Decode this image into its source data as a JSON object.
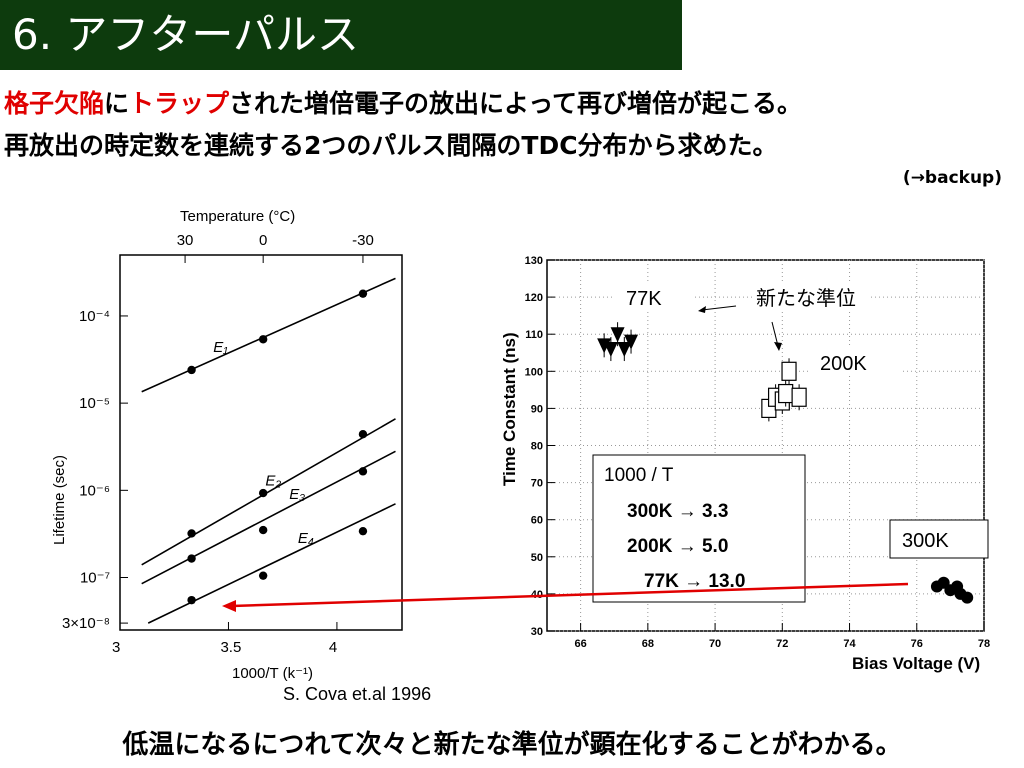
{
  "title": "6. アフターパルス",
  "intro": {
    "seg1_red": "格子欠陥",
    "seg2": "に",
    "seg3_red": "トラップ",
    "seg4": "された増倍電子の放出によって再び増倍が起こる。",
    "line2": "再放出の時定数を連続する2つのパルス間隔のTDC分布から求めた。",
    "backup": "(→backup)"
  },
  "citation": "S. Cova et.al 1996",
  "conclusion": "低温になるにつれて次々と新たな準位が顕在化することがわかる。",
  "colors": {
    "title_bg": "#0d3b0d",
    "accent_red": "#e00000"
  },
  "chart_data": [
    {
      "type": "line",
      "xlabel": "1000/T (k⁻¹)",
      "ylabel": "Lifetime (sec)",
      "top_xlabel": "Temperature (°C)",
      "x_range": [
        3.0,
        4.3
      ],
      "y_range": [
        2.5e-08,
        0.0005
      ],
      "y_scale": "log",
      "x_ticks": [
        3,
        3.5,
        4
      ],
      "x_tick_labels": [
        "3",
        "3.5",
        "4"
      ],
      "y_ticks": [
        0.0001,
        1e-05,
        1e-06,
        1e-07,
        3e-08
      ],
      "y_tick_labels": [
        "10⁻⁴",
        "10⁻⁵",
        "10⁻⁶",
        "10⁻⁷",
        "3×10⁻⁸"
      ],
      "top_ticks": [
        30,
        0,
        -30
      ],
      "top_tick_labels": [
        "30",
        "0",
        "-30"
      ],
      "series": [
        {
          "name": "E₁",
          "x": [
            3.33,
            3.66,
            4.12
          ],
          "y": [
            2.4e-05,
            5.4e-05,
            0.00018
          ],
          "fit": [
            [
              3.1,
              1.35e-05
            ],
            [
              4.27,
              0.00027
            ]
          ]
        },
        {
          "name": "E₂",
          "x": [
            3.33,
            3.66,
            4.12
          ],
          "y": [
            3.2e-07,
            9.3e-07,
            4.4e-06
          ],
          "fit": [
            [
              3.1,
              1.4e-07
            ],
            [
              4.27,
              6.6e-06
            ]
          ]
        },
        {
          "name": "E₃",
          "x": [
            3.33,
            3.66,
            4.12
          ],
          "y": [
            1.65e-07,
            3.5e-07,
            1.65e-06
          ],
          "fit": [
            [
              3.1,
              8.5e-08
            ],
            [
              4.27,
              2.8e-06
            ]
          ]
        },
        {
          "name": "E₄",
          "x": [
            3.33,
            3.66,
            4.12
          ],
          "y": [
            5.5e-08,
            1.05e-07,
            3.4e-07
          ],
          "fit": [
            [
              3.13,
              3e-08
            ],
            [
              4.27,
              7e-07
            ]
          ]
        }
      ]
    },
    {
      "type": "scatter",
      "xlabel": "Bias Voltage (V)",
      "ylabel": "Time Constant (ns)",
      "xlim": [
        65,
        78
      ],
      "ylim": [
        30,
        130
      ],
      "x_ticks": [
        66,
        68,
        70,
        72,
        74,
        76,
        78
      ],
      "y_ticks": [
        30,
        40,
        50,
        60,
        70,
        80,
        90,
        100,
        110,
        120,
        130
      ],
      "grid": true,
      "series": [
        {
          "name": "77K",
          "x": [
            66.7,
            66.9,
            67.1,
            67.3,
            67.5
          ],
          "y": [
            107,
            106,
            110,
            106,
            108
          ]
        },
        {
          "name": "200K",
          "x": [
            71.6,
            71.8,
            72.0,
            72.1,
            72.2,
            72.5
          ],
          "y": [
            90,
            93,
            92,
            94,
            100,
            93
          ]
        },
        {
          "name": "300K",
          "x": [
            76.6,
            76.8,
            77.0,
            77.2,
            77.3,
            77.5
          ],
          "y": [
            42,
            43,
            41,
            42,
            40,
            39
          ]
        }
      ],
      "annotations": {
        "label_77k": "77K",
        "new_level": "新たな準位",
        "label_200k": "200K",
        "label_300k": "300K"
      },
      "info_box": {
        "heading": "1000 / T",
        "rows": [
          "300K → 3.3",
          "200K → 5.0",
          "77K → 13.0"
        ]
      }
    }
  ]
}
